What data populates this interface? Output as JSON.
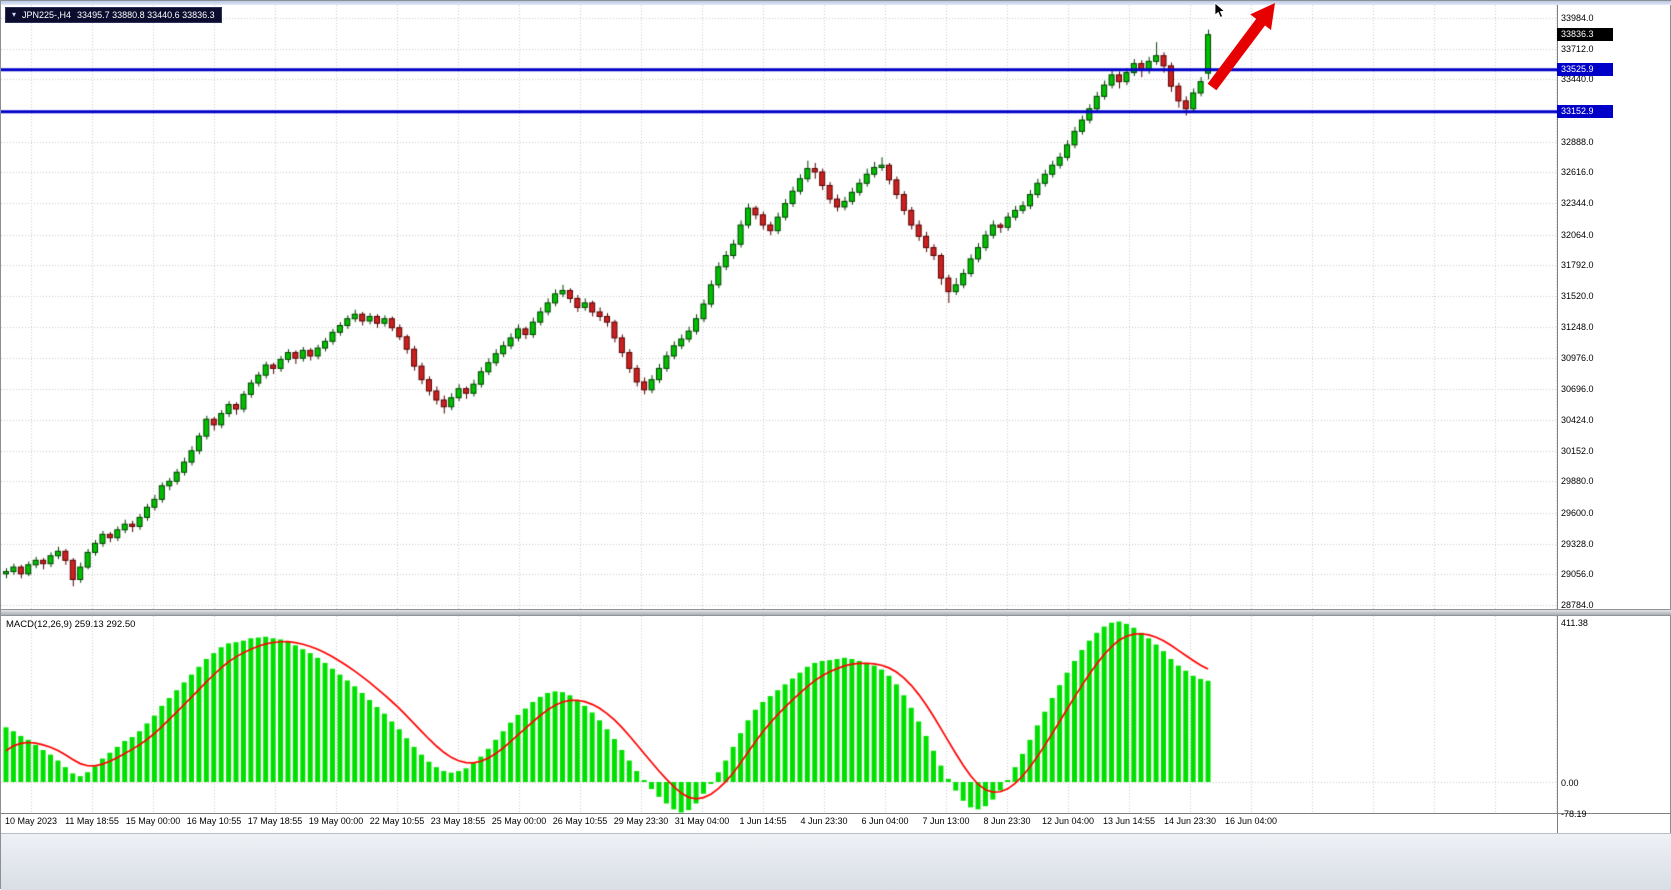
{
  "window": {
    "symbol_bar": {
      "symbol_timeframe": "JPN225-,H4",
      "ohlc": "33495.7 33880.8 33440.6 33836.3"
    }
  },
  "colors": {
    "up": "#00C000",
    "up_border": "#004000",
    "down": "#CC2020",
    "down_border": "#550000",
    "macd_bar": "#00E000",
    "macd_signal": "#FF0000",
    "hline": "#0000C8",
    "grid": "#CDCDCD",
    "current_tag_bg": "#000000",
    "arrow": "#E60000"
  },
  "chart_data": {
    "type": "candlestick",
    "symbol": "JPN225-",
    "timeframe": "H4",
    "last_candle_ohlc": {
      "open": 33495.7,
      "high": 33880.8,
      "low": 33440.6,
      "close": 33836.3
    },
    "price_axis": {
      "min": 28784.0,
      "max": 33984.0,
      "labels": [
        "33984.0",
        "33712.0",
        "33440.0",
        "32888.0",
        "32616.0",
        "32344.0",
        "32064.0",
        "31792.0",
        "31520.0",
        "31248.0",
        "30976.0",
        "30696.0",
        "30424.0",
        "30152.0",
        "29880.0",
        "29600.0",
        "29328.0",
        "29056.0",
        "28784.0"
      ],
      "gridlines": [
        33984,
        33712,
        33440,
        33164,
        32888,
        32616,
        32344,
        32064,
        31792,
        31520,
        31248,
        30976,
        30696,
        30424,
        30152,
        29880,
        29600,
        29328,
        29056,
        28784
      ],
      "current_price": 33836.3,
      "current_price_tag": "33836.3"
    },
    "horizontal_lines": [
      {
        "price": 33525.9,
        "label": "33525.9",
        "color": "#0000C8"
      },
      {
        "price": 33152.9,
        "label": "33152.9",
        "color": "#0000C8"
      }
    ],
    "time_axis": {
      "labels": [
        "10 May 2023",
        "11 May 18:55",
        "15 May 00:00",
        "16 May 10:55",
        "17 May 18:55",
        "19 May 00:00",
        "22 May 10:55",
        "23 May 18:55",
        "25 May 00:00",
        "26 May 10:55",
        "29 May 23:30",
        "31 May 04:00",
        "1 Jun 14:55",
        "4 Jun 23:30",
        "6 Jun 04:00",
        "7 Jun 13:00",
        "8 Jun 23:30",
        "12 Jun 04:00",
        "13 Jun 14:55",
        "14 Jun 23:30",
        "16 Jun 04:00"
      ]
    },
    "candles": [
      [
        29060,
        29110,
        29020,
        29080
      ],
      [
        29080,
        29150,
        29050,
        29120
      ],
      [
        29120,
        29140,
        29020,
        29060
      ],
      [
        29060,
        29170,
        29040,
        29140
      ],
      [
        29140,
        29210,
        29110,
        29180
      ],
      [
        29180,
        29200,
        29100,
        29150
      ],
      [
        29150,
        29250,
        29120,
        29220
      ],
      [
        29220,
        29300,
        29190,
        29260
      ],
      [
        29260,
        29280,
        29140,
        29180
      ],
      [
        29180,
        29200,
        28950,
        29010
      ],
      [
        29010,
        29160,
        28980,
        29120
      ],
      [
        29120,
        29280,
        29100,
        29250
      ],
      [
        29250,
        29360,
        29220,
        29330
      ],
      [
        29330,
        29440,
        29300,
        29410
      ],
      [
        29410,
        29430,
        29340,
        29380
      ],
      [
        29380,
        29480,
        29350,
        29450
      ],
      [
        29450,
        29540,
        29420,
        29500
      ],
      [
        29500,
        29530,
        29430,
        29480
      ],
      [
        29480,
        29590,
        29450,
        29560
      ],
      [
        29560,
        29680,
        29530,
        29650
      ],
      [
        29650,
        29760,
        29620,
        29720
      ],
      [
        29720,
        29870,
        29690,
        29840
      ],
      [
        29840,
        29910,
        29800,
        29880
      ],
      [
        29880,
        29990,
        29850,
        29960
      ],
      [
        29960,
        30090,
        29930,
        30050
      ],
      [
        30050,
        30190,
        30020,
        30150
      ],
      [
        30150,
        30310,
        30120,
        30280
      ],
      [
        30280,
        30460,
        30250,
        30430
      ],
      [
        30430,
        30450,
        30330,
        30380
      ],
      [
        30380,
        30510,
        30350,
        30480
      ],
      [
        30480,
        30590,
        30450,
        30560
      ],
      [
        30560,
        30580,
        30470,
        30520
      ],
      [
        30520,
        30680,
        30490,
        30650
      ],
      [
        30650,
        30780,
        30620,
        30750
      ],
      [
        30750,
        30850,
        30720,
        30820
      ],
      [
        30820,
        30940,
        30790,
        30910
      ],
      [
        30910,
        30930,
        30830,
        30880
      ],
      [
        30880,
        30990,
        30850,
        30960
      ],
      [
        30960,
        31050,
        30930,
        31020
      ],
      [
        31020,
        31040,
        30920,
        30970
      ],
      [
        30970,
        31070,
        30940,
        31040
      ],
      [
        31040,
        31060,
        30950,
        30990
      ],
      [
        30990,
        31090,
        30960,
        31060
      ],
      [
        31060,
        31150,
        31030,
        31120
      ],
      [
        31120,
        31230,
        31090,
        31200
      ],
      [
        31200,
        31290,
        31170,
        31260
      ],
      [
        31260,
        31350,
        31230,
        31320
      ],
      [
        31320,
        31400,
        31290,
        31360
      ],
      [
        31360,
        31380,
        31260,
        31300
      ],
      [
        31300,
        31370,
        31270,
        31340
      ],
      [
        31340,
        31360,
        31240,
        31280
      ],
      [
        31280,
        31350,
        31250,
        31320
      ],
      [
        31320,
        31340,
        31210,
        31240
      ],
      [
        31240,
        31270,
        31130,
        31160
      ],
      [
        31160,
        31180,
        31010,
        31050
      ],
      [
        31050,
        31080,
        30860,
        30900
      ],
      [
        30900,
        30930,
        30740,
        30780
      ],
      [
        30780,
        30810,
        30640,
        30680
      ],
      [
        30680,
        30720,
        30560,
        30600
      ],
      [
        30600,
        30640,
        30480,
        30540
      ],
      [
        30540,
        30660,
        30510,
        30620
      ],
      [
        30620,
        30740,
        30590,
        30700
      ],
      [
        30700,
        30720,
        30610,
        30660
      ],
      [
        30660,
        30780,
        30630,
        30740
      ],
      [
        30740,
        30890,
        30710,
        30850
      ],
      [
        30850,
        30970,
        30820,
        30930
      ],
      [
        30930,
        31050,
        30900,
        31010
      ],
      [
        31010,
        31120,
        30980,
        31080
      ],
      [
        31080,
        31190,
        31050,
        31150
      ],
      [
        31150,
        31270,
        31120,
        31230
      ],
      [
        31230,
        31250,
        31140,
        31180
      ],
      [
        31180,
        31330,
        31150,
        31290
      ],
      [
        31290,
        31420,
        31260,
        31380
      ],
      [
        31380,
        31500,
        31350,
        31460
      ],
      [
        31460,
        31580,
        31430,
        31540
      ],
      [
        31540,
        31620,
        31510,
        31570
      ],
      [
        31570,
        31590,
        31460,
        31500
      ],
      [
        31500,
        31530,
        31380,
        31420
      ],
      [
        31420,
        31500,
        31390,
        31460
      ],
      [
        31460,
        31480,
        31340,
        31380
      ],
      [
        31380,
        31420,
        31300,
        31340
      ],
      [
        31340,
        31370,
        31250,
        31290
      ],
      [
        31290,
        31310,
        31110,
        31150
      ],
      [
        31150,
        31180,
        30980,
        31020
      ],
      [
        31020,
        31050,
        30840,
        30880
      ],
      [
        30880,
        30910,
        30720,
        30760
      ],
      [
        30760,
        30800,
        30650,
        30690
      ],
      [
        30690,
        30820,
        30660,
        30780
      ],
      [
        30780,
        30920,
        30750,
        30880
      ],
      [
        30880,
        31030,
        30850,
        30990
      ],
      [
        30990,
        31120,
        30960,
        31080
      ],
      [
        31080,
        31180,
        31050,
        31140
      ],
      [
        31140,
        31250,
        31110,
        31210
      ],
      [
        31210,
        31360,
        31180,
        31320
      ],
      [
        31320,
        31490,
        31290,
        31450
      ],
      [
        31450,
        31660,
        31420,
        31620
      ],
      [
        31620,
        31820,
        31590,
        31780
      ],
      [
        31780,
        31920,
        31750,
        31880
      ],
      [
        31880,
        32020,
        31850,
        31980
      ],
      [
        31980,
        32190,
        31950,
        32150
      ],
      [
        32150,
        32340,
        32120,
        32300
      ],
      [
        32300,
        32320,
        32200,
        32240
      ],
      [
        32240,
        32270,
        32110,
        32150
      ],
      [
        32150,
        32180,
        32060,
        32100
      ],
      [
        32100,
        32260,
        32070,
        32220
      ],
      [
        32220,
        32380,
        32190,
        32340
      ],
      [
        32340,
        32490,
        32310,
        32450
      ],
      [
        32450,
        32600,
        32420,
        32560
      ],
      [
        32560,
        32720,
        32530,
        32650
      ],
      [
        32650,
        32700,
        32560,
        32620
      ],
      [
        32620,
        32650,
        32460,
        32500
      ],
      [
        32500,
        32530,
        32340,
        32380
      ],
      [
        32380,
        32420,
        32270,
        32310
      ],
      [
        32310,
        32400,
        32280,
        32360
      ],
      [
        32360,
        32480,
        32330,
        32440
      ],
      [
        32440,
        32560,
        32410,
        32520
      ],
      [
        32520,
        32650,
        32490,
        32600
      ],
      [
        32600,
        32710,
        32570,
        32660
      ],
      [
        32660,
        32750,
        32630,
        32680
      ],
      [
        32680,
        32700,
        32510,
        32550
      ],
      [
        32550,
        32580,
        32380,
        32420
      ],
      [
        32420,
        32450,
        32240,
        32280
      ],
      [
        32280,
        32310,
        32110,
        32150
      ],
      [
        32150,
        32190,
        32010,
        32050
      ],
      [
        32050,
        32090,
        31910,
        31950
      ],
      [
        31950,
        31980,
        31840,
        31880
      ],
      [
        31880,
        31900,
        31620,
        31680
      ],
      [
        31680,
        31710,
        31460,
        31560
      ],
      [
        31560,
        31680,
        31530,
        31620
      ],
      [
        31620,
        31760,
        31590,
        31720
      ],
      [
        31720,
        31890,
        31690,
        31850
      ],
      [
        31850,
        31990,
        31820,
        31950
      ],
      [
        31950,
        32100,
        31920,
        32060
      ],
      [
        32060,
        32190,
        32030,
        32150
      ],
      [
        32150,
        32170,
        32080,
        32130
      ],
      [
        32130,
        32260,
        32100,
        32220
      ],
      [
        32220,
        32320,
        32190,
        32280
      ],
      [
        32280,
        32360,
        32250,
        32320
      ],
      [
        32320,
        32460,
        32290,
        32420
      ],
      [
        32420,
        32560,
        32390,
        32520
      ],
      [
        32520,
        32640,
        32490,
        32600
      ],
      [
        32600,
        32720,
        32570,
        32680
      ],
      [
        32680,
        32790,
        32650,
        32750
      ],
      [
        32750,
        32900,
        32720,
        32860
      ],
      [
        32860,
        33020,
        32830,
        32980
      ],
      [
        32980,
        33120,
        32950,
        33080
      ],
      [
        33080,
        33220,
        33050,
        33180
      ],
      [
        33180,
        33330,
        33150,
        33290
      ],
      [
        33290,
        33430,
        33260,
        33390
      ],
      [
        33390,
        33520,
        33360,
        33480
      ],
      [
        33480,
        33510,
        33360,
        33420
      ],
      [
        33420,
        33540,
        33390,
        33500
      ],
      [
        33500,
        33620,
        33470,
        33580
      ],
      [
        33580,
        33610,
        33460,
        33520
      ],
      [
        33520,
        33640,
        33490,
        33600
      ],
      [
        33600,
        33770,
        33570,
        33650
      ],
      [
        33650,
        33680,
        33500,
        33560
      ],
      [
        33560,
        33590,
        33330,
        33380
      ],
      [
        33380,
        33410,
        33190,
        33250
      ],
      [
        33250,
        33290,
        33120,
        33180
      ],
      [
        33180,
        33360,
        33150,
        33320
      ],
      [
        33320,
        33460,
        33290,
        33420
      ],
      [
        33495.7,
        33880.8,
        33440.6,
        33836.3
      ]
    ],
    "macd": {
      "label": "MACD(12,26,9) 259.13 292.50",
      "name": "MACD(12,26,9)",
      "values_text": [
        "259.13",
        "292.50"
      ],
      "axis_labels": [
        "411.38",
        "0.00",
        "-78.19"
      ],
      "max": 411.38,
      "min": -78.19,
      "signal_period": 9,
      "signal_alpha": 0.25,
      "signal_seed": 60,
      "histogram": [
        140,
        130,
        118,
        108,
        95,
        82,
        70,
        55,
        38,
        22,
        15,
        25,
        40,
        60,
        75,
        90,
        105,
        115,
        130,
        150,
        170,
        195,
        215,
        235,
        255,
        275,
        295,
        315,
        330,
        345,
        355,
        358,
        362,
        368,
        370,
        372,
        368,
        365,
        360,
        350,
        340,
        330,
        318,
        305,
        290,
        275,
        260,
        245,
        228,
        210,
        192,
        175,
        155,
        135,
        112,
        90,
        70,
        52,
        38,
        28,
        24,
        28,
        35,
        48,
        65,
        85,
        108,
        130,
        152,
        172,
        188,
        205,
        218,
        228,
        232,
        230,
        222,
        210,
        195,
        178,
        158,
        135,
        110,
        82,
        55,
        28,
        5,
        -18,
        -38,
        -55,
        -70,
        -78,
        -72,
        -55,
        -30,
        -5,
        25,
        55,
        90,
        125,
        158,
        185,
        205,
        220,
        235,
        250,
        265,
        280,
        295,
        305,
        310,
        312,
        315,
        318,
        315,
        310,
        305,
        298,
        288,
        272,
        250,
        222,
        190,
        155,
        118,
        80,
        42,
        8,
        -22,
        -48,
        -65,
        -70,
        -62,
        -45,
        -22,
        5,
        38,
        72,
        108,
        145,
        180,
        215,
        248,
        280,
        310,
        338,
        362,
        382,
        398,
        408,
        411,
        405,
        395,
        382,
        368,
        352,
        335,
        315,
        298,
        285,
        272,
        264,
        259.13
      ]
    },
    "annotations": {
      "arrow": "red-up-right-arrow"
    }
  }
}
